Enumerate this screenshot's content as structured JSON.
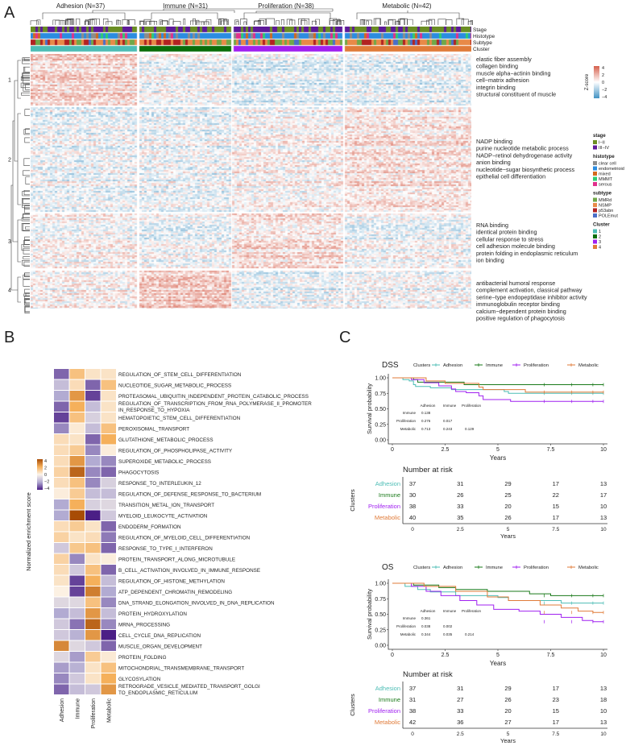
{
  "panel_a": {
    "label": "A",
    "groups": [
      "Adhesion (N=37)",
      "Immune (N=31)",
      "Proliferation (N=38)",
      "Metabolic (N=42)"
    ],
    "annotation_rows": [
      "Stage",
      "Histotype",
      "Subtype",
      "Cluster"
    ],
    "row_clusters": [
      "1",
      "2",
      "3",
      "4"
    ],
    "terms": [
      [
        "elastic fiber assembly",
        "collagen binding",
        "muscle alpha−actinin binding",
        "cell−matrix adhesion",
        "integrin binding",
        "structural constituent of muscle"
      ],
      [
        "NADP binding",
        "purine nucleotide metabolic process",
        "NADP−retinol dehydrogenase activity",
        "anion binding",
        "nucleotide−sugar biosynthetic process",
        "epithelial cell differentiation"
      ],
      [
        "RNA binding",
        "identical protein binding",
        "cellular response to stress",
        "cell adhesion molecule binding",
        "protein folding in endoplasmic reticulum",
        "ion binding"
      ],
      [
        "antibacterial humoral response",
        "complement activation, classical pathway",
        "serine−type endopeptidase inhibitor activity",
        "immunoglobulin receptor binding",
        "calcium−dependent protein binding",
        "positive regulation of phagocytosis"
      ]
    ],
    "zscore_legend": {
      "title": "Z-score",
      "ticks": [
        "4",
        "2",
        "0",
        "−2",
        "−4"
      ],
      "high": "#d6604d",
      "low": "#4393c3"
    },
    "legends": [
      {
        "title": "stage",
        "items": [
          {
            "label": "I−II",
            "color": "#6b8e23"
          },
          {
            "label": "III−IV",
            "color": "#5e1a9a"
          }
        ]
      },
      {
        "title": "histotype",
        "items": [
          {
            "label": "clear cell",
            "color": "#8c8c8c"
          },
          {
            "label": "endometrioid",
            "color": "#2b8ce0"
          },
          {
            "label": "mixed",
            "color": "#d2691e"
          },
          {
            "label": "MMMT",
            "color": "#2ecc71"
          },
          {
            "label": "serous",
            "color": "#e0308c"
          }
        ]
      },
      {
        "title": "subtype",
        "items": [
          {
            "label": "MMRd",
            "color": "#70a848"
          },
          {
            "label": "NSMP",
            "color": "#e88a48"
          },
          {
            "label": "p53abn",
            "color": "#b22222"
          },
          {
            "label": "POLEmut",
            "color": "#4a6fc8"
          }
        ]
      },
      {
        "title": "Cluster",
        "items": [
          {
            "label": "1",
            "color": "#4dbdb5"
          },
          {
            "label": "2",
            "color": "#0a6e0a"
          },
          {
            "label": "3",
            "color": "#a020f0"
          },
          {
            "label": "4",
            "color": "#e07b39"
          }
        ]
      }
    ]
  },
  "chart_data": [
    {
      "type": "heatmap",
      "panel": "B",
      "ylabel": "Normalized enrichment score",
      "columns": [
        "Adhesion",
        "Immune",
        "Proliferation",
        "Metabolic"
      ],
      "legend_ticks": [
        "4",
        "2",
        "0",
        "−2",
        "−4"
      ],
      "range": [
        -4,
        4
      ],
      "rows": [
        {
          "label": "REGULATION_OF_STEM_CELL_DIFFERENTIATION",
          "values": [
            -3,
            1.5,
            0.5,
            0.5
          ]
        },
        {
          "label": "NUCLEOTIDE_SUGAR_METABOLIC_PROCESS",
          "values": [
            -1.5,
            0.7,
            -3,
            1.5
          ]
        },
        {
          "label": "PROTEASOMAL_UBIQUITIN_INDEPENDENT_PROTEIN_CATABOLIC_PROCESS",
          "values": [
            -2,
            2.5,
            -3.5,
            0.5
          ]
        },
        {
          "label": "REGULATION_OF_TRANSCRIPTION_FROM_RNA_POLYMERASE_II_PROMOTER",
          "label2": "IN_RESPONSE_TO_HYPOXIA",
          "values": [
            -3,
            2,
            -1.5,
            0.5
          ]
        },
        {
          "label": "HEMATOPOIETIC_STEM_CELL_DIFFERENTIATION",
          "values": [
            -3.5,
            1.5,
            -1,
            0.5
          ]
        },
        {
          "label": "PEROXISOMAL_TRANSPORT",
          "values": [
            -2.5,
            0.3,
            -1.5,
            1.5
          ]
        },
        {
          "label": "GLUTATHIONE_METABOLIC_PROCESS",
          "values": [
            0.7,
            0.5,
            -3,
            2
          ]
        },
        {
          "label": "REGULATION_OF_PHOSPHOLIPASE_ACTIVITY",
          "values": [
            0.7,
            1.2,
            -2.5,
            0.2
          ]
        },
        {
          "label": "SUPEROXIDE_METABOLIC_PROCESS",
          "values": [
            0.7,
            2.5,
            -2,
            -2.5
          ]
        },
        {
          "label": "PHAGOCYTOSIS",
          "values": [
            1,
            3.5,
            -2.5,
            -3
          ]
        },
        {
          "label": "RESPONSE_TO_INTERLEUKIN_12",
          "values": [
            0.7,
            1.5,
            -2.5,
            -1
          ]
        },
        {
          "label": "REGULATION_OF_DEFENSE_RESPONSE_TO_BACTERIUM",
          "values": [
            0.2,
            1.2,
            -1.5,
            -1.5
          ]
        },
        {
          "label": "TRANSITION_METAL_ION_TRANSPORT",
          "values": [
            -2,
            2,
            -1,
            -0.8
          ]
        },
        {
          "label": "MYELOID_LEUKOCYTE_ACTIVATION",
          "values": [
            -2,
            4,
            -4,
            -1.2
          ]
        },
        {
          "label": "ENDODERM_FORMATION",
          "values": [
            0.7,
            1.2,
            0.5,
            -3
          ]
        },
        {
          "label": "REGULATION_OF_MYELOID_CELL_DIFFERENTIATION",
          "values": [
            1,
            0.5,
            0.7,
            -2.7
          ]
        },
        {
          "label": "RESPONSE_TO_TYPE_I_INTERFERON",
          "values": [
            -1.2,
            1.3,
            1.5,
            -3
          ]
        },
        {
          "label": "PROTEIN_TRANSPORT_ALONG_MICROTUBULE",
          "values": [
            1,
            -2.5,
            0.5,
            0.2
          ]
        },
        {
          "label": "B_CELL_ACTIVATION_INVOLVED_IN_IMMUNE_RESPONSE",
          "values": [
            0.7,
            -1.2,
            1.5,
            -3
          ]
        },
        {
          "label": "REGULATION_OF_HISTONE_METHYLATION",
          "values": [
            0.5,
            -3.5,
            2,
            -1.5
          ]
        },
        {
          "label": "ATP_DEPENDENT_CHROMATIN_REMODELING",
          "values": [
            0.1,
            -3.5,
            3,
            -2
          ]
        },
        {
          "label": "DNA_STRAND_ELONGATION_INVOLVED_IN_DNA_REPLICATION",
          "values": [
            -0.8,
            -0.8,
            1.5,
            -2.5
          ]
        },
        {
          "label": "PROTEIN_HYDROXYLATION",
          "values": [
            -2,
            -1.5,
            2.5,
            -1.5
          ]
        },
        {
          "label": "MRNA_PROCESSING",
          "values": [
            -1.2,
            -2.8,
            3.5,
            -2.5
          ]
        },
        {
          "label": "CELL_CYCLE_DNA_REPLICATION",
          "values": [
            -1.2,
            -1.8,
            2.5,
            -4
          ]
        },
        {
          "label": "MUSCLE_ORGAN_DEVELOPMENT",
          "values": [
            2.8,
            -0.8,
            -1.2,
            -3
          ]
        },
        {
          "label": "PROTEIN_FOLDING",
          "values": [
            -0.8,
            -2.2,
            1.2,
            0.3
          ]
        },
        {
          "label": "MITOCHONDRIAL_TRANSMEMBRANE_TRANSPORT",
          "values": [
            -2.2,
            -1.8,
            0.5,
            1.5
          ]
        },
        {
          "label": "GLYCOSYLATION",
          "values": [
            -2.5,
            -1.2,
            0.5,
            2
          ]
        },
        {
          "label": "RETROGRADE_VESICLE_MEDIATED_TRANSPORT_GOLGI",
          "label2": "TO_ENDOPLASMIC_RETICULUM",
          "values": [
            -3,
            -1.5,
            -1.2,
            2.5
          ]
        }
      ]
    },
    {
      "type": "line",
      "panel": "C",
      "title": "DSS",
      "legend_title": "Clusters",
      "xlabel": "Years",
      "ylabel": "Survival probability",
      "xlim": [
        0,
        10
      ],
      "ylim": [
        0,
        1
      ],
      "xticks": [
        "0",
        "2.5",
        "5",
        "7.5",
        "10"
      ],
      "yticks": [
        "0.00",
        "0.25",
        "0.50",
        "0.75",
        "1.00"
      ],
      "series": [
        {
          "name": "Adhesion",
          "color": "#4dbdb5",
          "steps": [
            [
              0,
              1
            ],
            [
              0.5,
              0.97
            ],
            [
              0.8,
              0.95
            ],
            [
              1,
              0.89
            ],
            [
              1.1,
              0.86
            ],
            [
              1.8,
              0.84
            ],
            [
              2.8,
              0.81
            ],
            [
              5.3,
              0.78
            ],
            [
              5.5,
              0.75
            ],
            [
              10,
              0.75
            ]
          ]
        },
        {
          "name": "Immune",
          "color": "#1a7a1a",
          "steps": [
            [
              0,
              1
            ],
            [
              1,
              0.97
            ],
            [
              1.2,
              0.93
            ],
            [
              3.4,
              0.89
            ],
            [
              10,
              0.89
            ]
          ]
        },
        {
          "name": "Proliferation",
          "color": "#a020f0",
          "steps": [
            [
              0,
              1
            ],
            [
              0.9,
              0.97
            ],
            [
              1.5,
              0.92
            ],
            [
              2.2,
              0.87
            ],
            [
              2.8,
              0.82
            ],
            [
              3,
              0.78
            ],
            [
              3.5,
              0.76
            ],
            [
              4.1,
              0.71
            ],
            [
              4.3,
              0.65
            ],
            [
              5.6,
              0.62
            ],
            [
              10,
              0.62
            ]
          ]
        },
        {
          "name": "Metabolic",
          "color": "#e07b39",
          "steps": [
            [
              0,
              1
            ],
            [
              1.6,
              0.95
            ],
            [
              2.5,
              0.91
            ],
            [
              4.1,
              0.85
            ],
            [
              4.3,
              0.81
            ],
            [
              6.3,
              0.77
            ],
            [
              10,
              0.77
            ]
          ]
        }
      ],
      "pvalue_table": {
        "cols": [
          "Adhesion",
          "Immune",
          "Proliferation"
        ],
        "rows": [
          {
            "name": "Immune",
            "values": [
              "0.138"
            ]
          },
          {
            "name": "Proliferation",
            "values": [
              "0.276",
              "0.017"
            ]
          },
          {
            "name": "Metabolic",
            "values": [
              "0.713",
              "0.243",
              "0.129"
            ]
          }
        ]
      },
      "risk_table": {
        "title": "Number at risk",
        "ylabel": "Clusters",
        "xlabel": "",
        "times": [
          "0",
          "2.5",
          "5",
          "7.5",
          "10"
        ],
        "rows": [
          {
            "name": "Adhesion",
            "values": [
              "37",
              "31",
              "29",
              "17",
              "13"
            ]
          },
          {
            "name": "Immune",
            "values": [
              "30",
              "26",
              "25",
              "22",
              "17"
            ]
          },
          {
            "name": "Proliferation",
            "values": [
              "38",
              "33",
              "20",
              "15",
              "10"
            ]
          },
          {
            "name": "Metabolic",
            "values": [
              "40",
              "35",
              "26",
              "17",
              "13"
            ]
          }
        ]
      }
    },
    {
      "type": "line",
      "panel": "C",
      "title": "OS",
      "legend_title": "Clusters",
      "xlabel": "Years",
      "ylabel": "Survival probability",
      "xlim": [
        0,
        10
      ],
      "ylim": [
        0,
        1
      ],
      "xticks": [
        "0",
        "2.5",
        "5",
        "7.5",
        "10"
      ],
      "yticks": [
        "0.00",
        "0.25",
        "0.50",
        "0.75",
        "1.00"
      ],
      "series": [
        {
          "name": "Adhesion",
          "color": "#4dbdb5",
          "steps": [
            [
              0,
              1
            ],
            [
              0.6,
              0.95
            ],
            [
              1.2,
              0.9
            ],
            [
              1.8,
              0.86
            ],
            [
              3,
              0.8
            ],
            [
              5,
              0.77
            ],
            [
              5.5,
              0.72
            ],
            [
              8,
              0.68
            ],
            [
              10,
              0.68
            ]
          ]
        },
        {
          "name": "Immune",
          "color": "#1a7a1a",
          "steps": [
            [
              0,
              1
            ],
            [
              1,
              0.97
            ],
            [
              2.2,
              0.93
            ],
            [
              3,
              0.9
            ],
            [
              4.5,
              0.87
            ],
            [
              6.5,
              0.83
            ],
            [
              7.5,
              0.8
            ],
            [
              10,
              0.8
            ]
          ]
        },
        {
          "name": "Proliferation",
          "color": "#a020f0",
          "steps": [
            [
              0,
              1
            ],
            [
              0.9,
              0.95
            ],
            [
              1.6,
              0.87
            ],
            [
              2.3,
              0.8
            ],
            [
              3.2,
              0.72
            ],
            [
              4,
              0.65
            ],
            [
              4.8,
              0.58
            ],
            [
              6,
              0.55
            ],
            [
              7,
              0.5
            ],
            [
              8,
              0.45
            ],
            [
              9,
              0.4
            ],
            [
              9.5,
              0.38
            ],
            [
              10,
              0.38
            ]
          ]
        },
        {
          "name": "Metabolic",
          "color": "#e07b39",
          "steps": [
            [
              0,
              1
            ],
            [
              1.5,
              0.95
            ],
            [
              3,
              0.87
            ],
            [
              4.5,
              0.78
            ],
            [
              5.5,
              0.72
            ],
            [
              7,
              0.65
            ],
            [
              8,
              0.6
            ],
            [
              8.8,
              0.55
            ],
            [
              9.5,
              0.53
            ],
            [
              10,
              0.53
            ]
          ]
        }
      ],
      "pvalue_table": {
        "cols": [
          "Adhesion",
          "Immune",
          "Proliferation"
        ],
        "rows": [
          {
            "name": "Immune",
            "values": [
              "0.361"
            ]
          },
          {
            "name": "Proliferation",
            "values": [
              "0.038",
              "0.002"
            ]
          },
          {
            "name": "Metabolic",
            "values": [
              "0.344",
              "0.035",
              "0.214"
            ]
          }
        ]
      },
      "risk_table": {
        "title": "Number at risk",
        "ylabel": "Clusters",
        "xlabel": "Years",
        "times": [
          "0",
          "2.5",
          "5",
          "7.5",
          "10"
        ],
        "rows": [
          {
            "name": "Adhesion",
            "values": [
              "37",
              "31",
              "29",
              "17",
              "13"
            ]
          },
          {
            "name": "Immune",
            "values": [
              "31",
              "27",
              "26",
              "23",
              "18"
            ]
          },
          {
            "name": "Proliferation",
            "values": [
              "38",
              "33",
              "20",
              "15",
              "10"
            ]
          },
          {
            "name": "Metabolic",
            "values": [
              "42",
              "36",
              "27",
              "17",
              "13"
            ]
          }
        ]
      }
    }
  ],
  "panel_b": {
    "label": "B"
  },
  "panel_c": {
    "label": "C"
  }
}
